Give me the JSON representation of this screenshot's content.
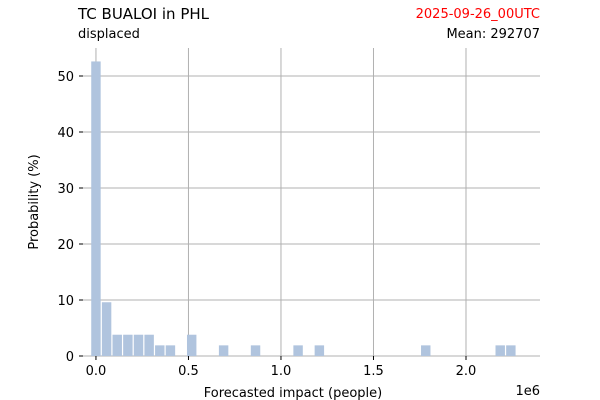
{
  "header": {
    "title": "TC BUALOI in PHL",
    "subtitle": "displaced",
    "date": "2025-09-26_00UTC",
    "mean_label": "Mean: 292707",
    "date_color": "#ff0000"
  },
  "chart_data": {
    "type": "bar",
    "title": "TC BUALOI in PHL",
    "xlabel": "Forecasted impact (people)",
    "ylabel": "Probability (%)",
    "x_offset_label": "1e6",
    "xlim": [
      -0.07,
      2.4
    ],
    "ylim": [
      0,
      55
    ],
    "bin_width": 0.0575,
    "bar_color": "#b0c4de",
    "grid": true,
    "x_ticks": [
      0.0,
      0.5,
      1.0,
      1.5,
      2.0
    ],
    "x_tick_labels": [
      "0.0",
      "0.5",
      "1.0",
      "1.5",
      "2.0"
    ],
    "y_ticks": [
      0,
      10,
      20,
      30,
      40,
      50
    ],
    "y_tick_labels": [
      "0",
      "10",
      "20",
      "30",
      "40",
      "50"
    ],
    "bins": [
      {
        "x": 0.0,
        "value": 52.6
      },
      {
        "x": 0.0575,
        "value": 9.6
      },
      {
        "x": 0.115,
        "value": 3.8
      },
      {
        "x": 0.1725,
        "value": 3.8
      },
      {
        "x": 0.23,
        "value": 3.8
      },
      {
        "x": 0.2875,
        "value": 3.8
      },
      {
        "x": 0.345,
        "value": 1.9
      },
      {
        "x": 0.4025,
        "value": 1.9
      },
      {
        "x": 0.5175,
        "value": 3.8
      },
      {
        "x": 0.69,
        "value": 1.9
      },
      {
        "x": 0.8625,
        "value": 1.9
      },
      {
        "x": 1.0925,
        "value": 1.9
      },
      {
        "x": 1.2075,
        "value": 1.9
      },
      {
        "x": 1.7825,
        "value": 1.9
      },
      {
        "x": 2.185,
        "value": 1.9
      },
      {
        "x": 2.2425,
        "value": 1.9
      }
    ]
  }
}
